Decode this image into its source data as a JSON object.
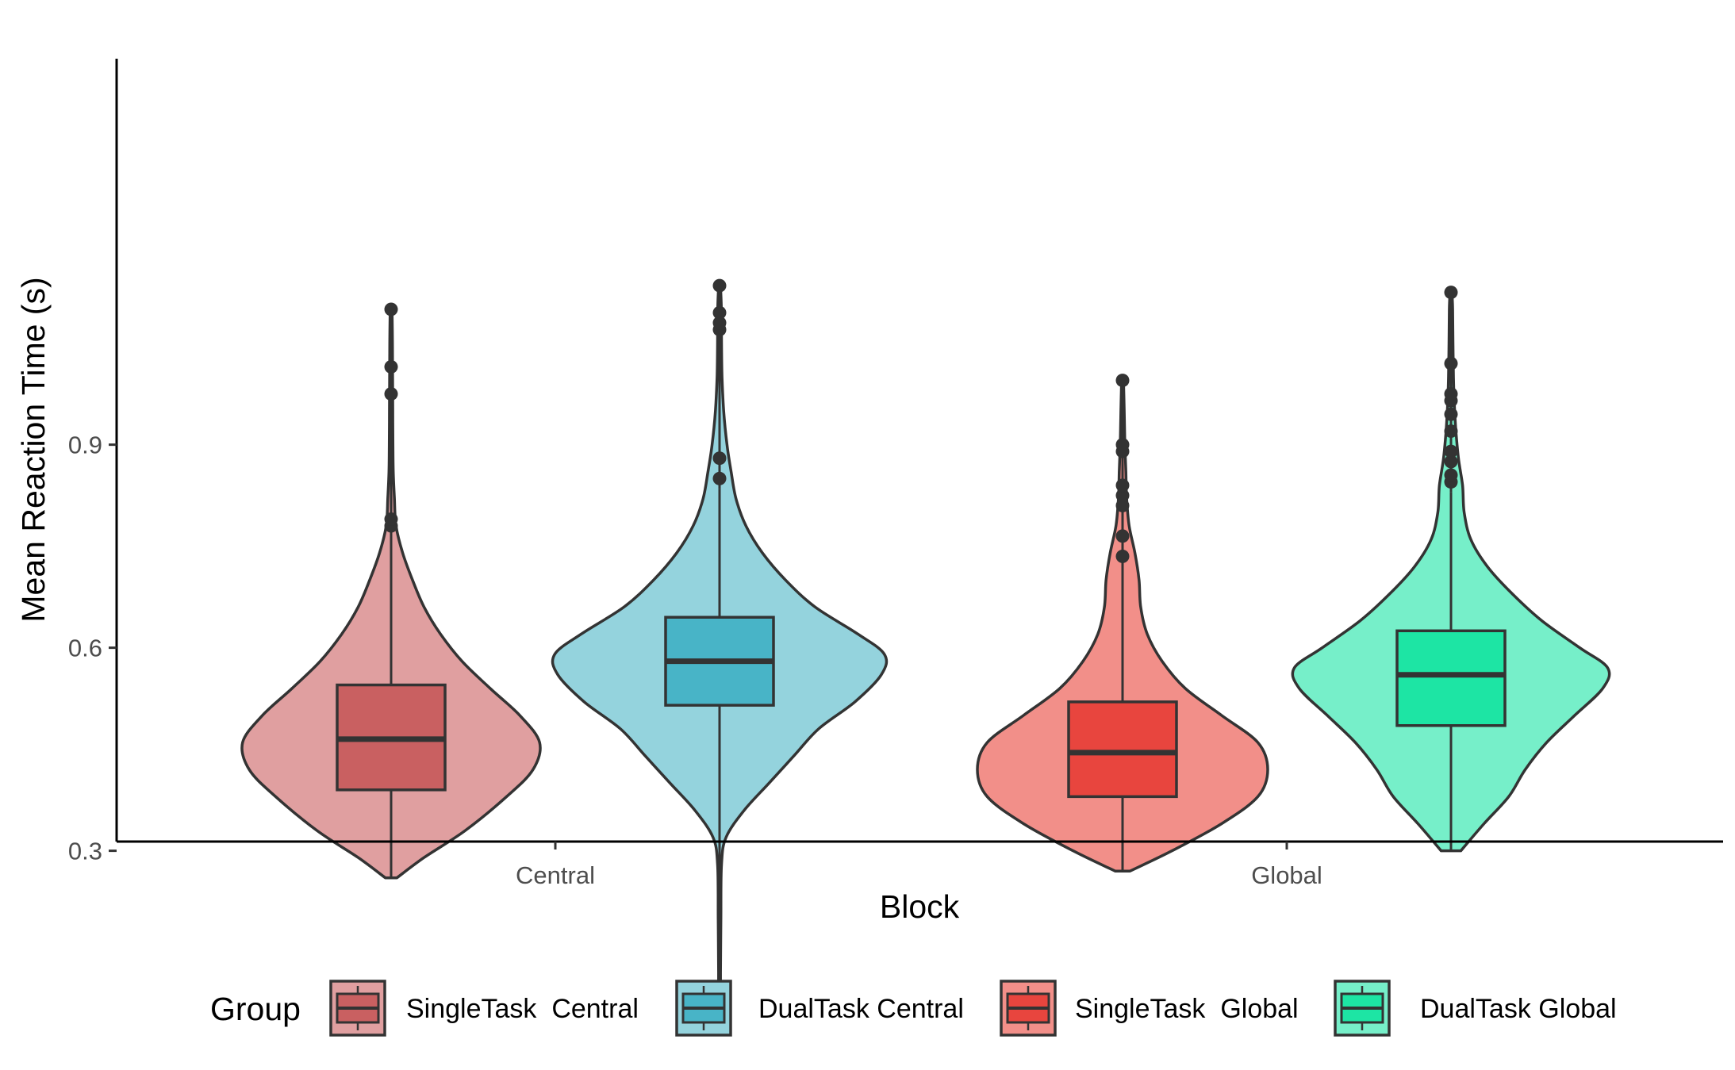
{
  "chart_data": {
    "type": "violin",
    "title": "",
    "xlabel": "Block",
    "ylabel": "Mean Reaction Time (s)",
    "categories": [
      "Central",
      "Global"
    ],
    "ylim": [
      0.04,
      1.14
    ],
    "yticks": [
      0.3,
      0.6,
      0.9
    ],
    "ytick_labels": [
      "0.3",
      "0.6",
      "0.9"
    ],
    "grid": false,
    "legend": {
      "title": "Group",
      "placement": "bottom"
    },
    "series": [
      {
        "name": "SingleTask  Central",
        "category": "Central",
        "violin_color": "#E09FA0",
        "box_color": "#C96061",
        "min": 0.26,
        "max": 1.1,
        "box": {
          "whisker_low": 0.26,
          "q1": 0.39,
          "median": 0.465,
          "q3": 0.545,
          "whisker_high": 0.775
        },
        "outliers": [
          0.78,
          0.79,
          0.975,
          1.015,
          1.1
        ],
        "density": [
          [
            0.26,
            0.035
          ],
          [
            0.29,
            0.2
          ],
          [
            0.33,
            0.45
          ],
          [
            0.38,
            0.7
          ],
          [
            0.42,
            0.86
          ],
          [
            0.46,
            0.9
          ],
          [
            0.5,
            0.78
          ],
          [
            0.54,
            0.6
          ],
          [
            0.58,
            0.43
          ],
          [
            0.62,
            0.3
          ],
          [
            0.66,
            0.2
          ],
          [
            0.7,
            0.13
          ],
          [
            0.74,
            0.07
          ],
          [
            0.78,
            0.03
          ],
          [
            0.82,
            0.02
          ],
          [
            0.86,
            0.013
          ],
          [
            0.9,
            0.011
          ],
          [
            0.95,
            0.01
          ],
          [
            1.0,
            0.009
          ],
          [
            1.05,
            0.008
          ],
          [
            1.1,
            0.006
          ]
        ]
      },
      {
        "name": "DualTask Central",
        "category": "Central",
        "violin_color": "#94D3DD",
        "box_color": "#48B4C7",
        "min": 0.07,
        "max": 1.135,
        "box": {
          "whisker_low": 0.33,
          "q1": 0.515,
          "median": 0.58,
          "q3": 0.645,
          "whisker_high": 0.835
        },
        "outliers": [
          0.07,
          0.85,
          0.88,
          1.07,
          1.08,
          1.095,
          1.135
        ],
        "density": [
          [
            0.07,
            0.006
          ],
          [
            0.12,
            0.006
          ],
          [
            0.2,
            0.008
          ],
          [
            0.28,
            0.012
          ],
          [
            0.32,
            0.04
          ],
          [
            0.36,
            0.15
          ],
          [
            0.4,
            0.3
          ],
          [
            0.44,
            0.45
          ],
          [
            0.48,
            0.6
          ],
          [
            0.52,
            0.82
          ],
          [
            0.56,
            0.98
          ],
          [
            0.59,
            1.0
          ],
          [
            0.62,
            0.84
          ],
          [
            0.66,
            0.58
          ],
          [
            0.7,
            0.4
          ],
          [
            0.74,
            0.26
          ],
          [
            0.78,
            0.16
          ],
          [
            0.82,
            0.1
          ],
          [
            0.86,
            0.07
          ],
          [
            0.9,
            0.045
          ],
          [
            0.95,
            0.025
          ],
          [
            1.0,
            0.015
          ],
          [
            1.05,
            0.012
          ],
          [
            1.1,
            0.011
          ],
          [
            1.135,
            0.006
          ]
        ]
      },
      {
        "name": "SingleTask  Global",
        "category": "Global",
        "violin_color": "#F28F89",
        "box_color": "#E8453E",
        "min": 0.27,
        "max": 0.995,
        "box": {
          "whisker_low": 0.27,
          "q1": 0.38,
          "median": 0.445,
          "q3": 0.52,
          "whisker_high": 0.73
        },
        "outliers": [
          0.735,
          0.765,
          0.81,
          0.825,
          0.84,
          0.89,
          0.9,
          0.995
        ],
        "density": [
          [
            0.27,
            0.045
          ],
          [
            0.3,
            0.3
          ],
          [
            0.34,
            0.6
          ],
          [
            0.38,
            0.82
          ],
          [
            0.42,
            0.88
          ],
          [
            0.46,
            0.82
          ],
          [
            0.5,
            0.6
          ],
          [
            0.54,
            0.38
          ],
          [
            0.58,
            0.24
          ],
          [
            0.62,
            0.15
          ],
          [
            0.66,
            0.11
          ],
          [
            0.7,
            0.1
          ],
          [
            0.74,
            0.075
          ],
          [
            0.78,
            0.04
          ],
          [
            0.82,
            0.025
          ],
          [
            0.86,
            0.02
          ],
          [
            0.9,
            0.014
          ],
          [
            0.95,
            0.01
          ],
          [
            0.995,
            0.006
          ]
        ]
      },
      {
        "name": "DualTask Global",
        "category": "Global",
        "violin_color": "#76EFC9",
        "box_color": "#1DE5A4",
        "min": 0.3,
        "max": 1.125,
        "box": {
          "whisker_low": 0.3,
          "q1": 0.485,
          "median": 0.56,
          "q3": 0.625,
          "whisker_high": 0.83
        },
        "outliers": [
          0.845,
          0.855,
          0.875,
          0.89,
          0.92,
          0.945,
          0.965,
          0.975,
          1.02,
          1.125
        ],
        "density": [
          [
            0.3,
            0.06
          ],
          [
            0.34,
            0.2
          ],
          [
            0.38,
            0.35
          ],
          [
            0.42,
            0.45
          ],
          [
            0.46,
            0.58
          ],
          [
            0.5,
            0.75
          ],
          [
            0.54,
            0.92
          ],
          [
            0.57,
            0.95
          ],
          [
            0.6,
            0.78
          ],
          [
            0.64,
            0.55
          ],
          [
            0.68,
            0.37
          ],
          [
            0.72,
            0.22
          ],
          [
            0.76,
            0.12
          ],
          [
            0.8,
            0.08
          ],
          [
            0.84,
            0.07
          ],
          [
            0.88,
            0.045
          ],
          [
            0.92,
            0.03
          ],
          [
            0.96,
            0.02
          ],
          [
            1.0,
            0.015
          ],
          [
            1.05,
            0.012
          ],
          [
            1.1,
            0.01
          ],
          [
            1.125,
            0.006
          ]
        ]
      }
    ]
  }
}
